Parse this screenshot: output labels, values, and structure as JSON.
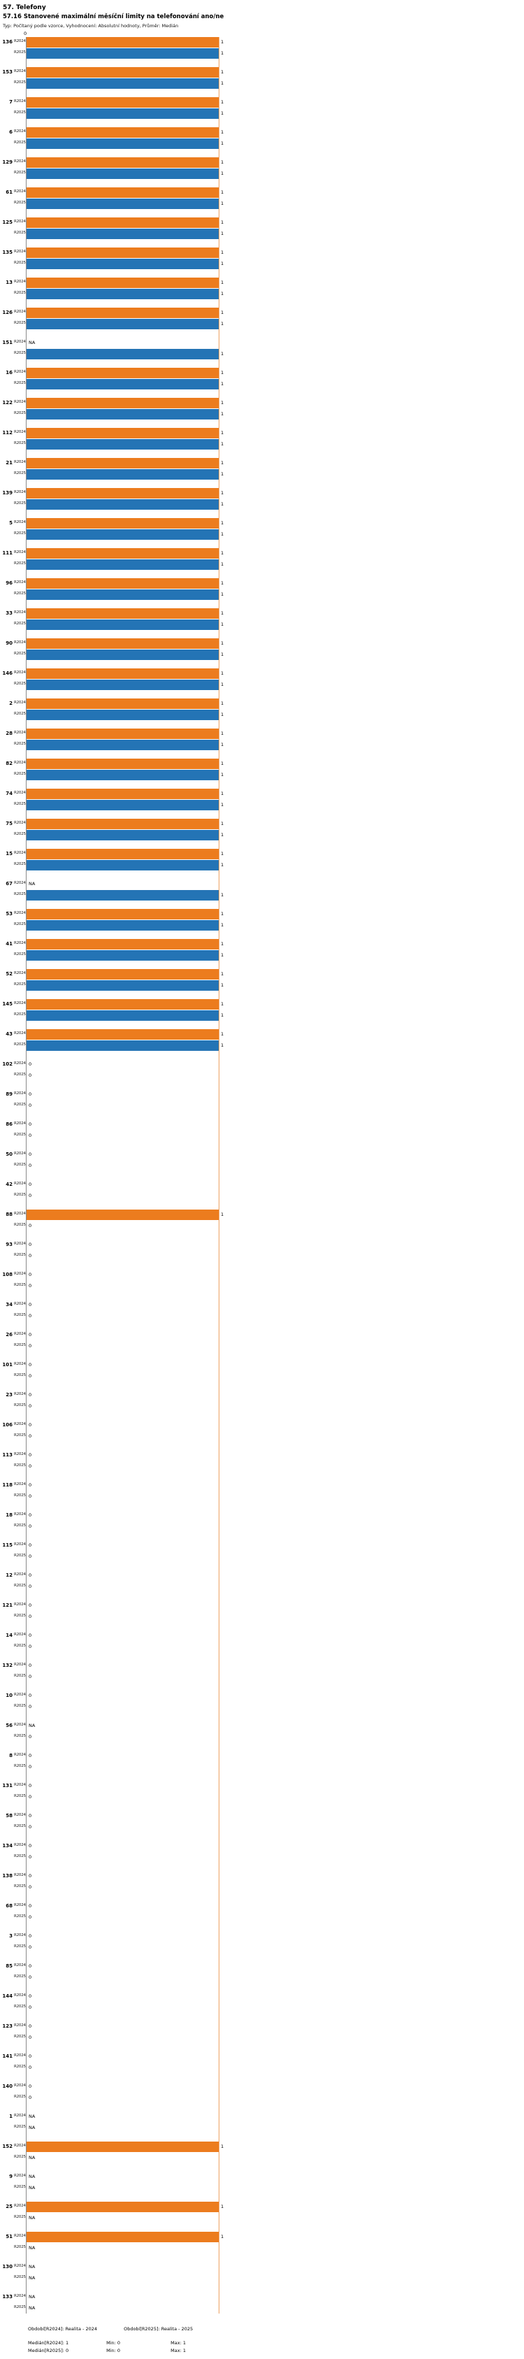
{
  "header": {
    "title": "57. Telefony",
    "subtitle": "57.16 Stanovené maximální měsíční limity na telefonování ano/ne",
    "meta": "Typ: Počítaný podle vzorce, Vyhodnocení: Absolutní hodnoty, Průměr: Medián"
  },
  "chart_data": {
    "type": "bar",
    "orientation": "horizontal",
    "title": "57.16 Stanovené maximální měsíční limity na telefonování ano/ne",
    "series_names": [
      "R2024",
      "R2025"
    ],
    "colors": {
      "R2024": "#ec7c1e",
      "R2025": "#2474b5"
    },
    "axis": {
      "min": 0,
      "max": 1,
      "top_tick_label": "0"
    },
    "legend_position": "bottom",
    "groups": [
      {
        "id": "136",
        "R2024": 1,
        "R2025": 1
      },
      {
        "id": "153",
        "R2024": 1,
        "R2025": 1
      },
      {
        "id": "7",
        "R2024": 1,
        "R2025": 1
      },
      {
        "id": "6",
        "R2024": 1,
        "R2025": 1
      },
      {
        "id": "129",
        "R2024": 1,
        "R2025": 1
      },
      {
        "id": "61",
        "R2024": 1,
        "R2025": 1
      },
      {
        "id": "125",
        "R2024": 1,
        "R2025": 1
      },
      {
        "id": "135",
        "R2024": 1,
        "R2025": 1
      },
      {
        "id": "13",
        "R2024": 1,
        "R2025": 1
      },
      {
        "id": "126",
        "R2024": 1,
        "R2025": 1
      },
      {
        "id": "151",
        "R2024": "NA",
        "R2025": 1
      },
      {
        "id": "16",
        "R2024": 1,
        "R2025": 1
      },
      {
        "id": "122",
        "R2024": 1,
        "R2025": 1
      },
      {
        "id": "112",
        "R2024": 1,
        "R2025": 1
      },
      {
        "id": "21",
        "R2024": 1,
        "R2025": 1
      },
      {
        "id": "139",
        "R2024": 1,
        "R2025": 1
      },
      {
        "id": "5",
        "R2024": 1,
        "R2025": 1
      },
      {
        "id": "111",
        "R2024": 1,
        "R2025": 1
      },
      {
        "id": "96",
        "R2024": 1,
        "R2025": 1
      },
      {
        "id": "33",
        "R2024": 1,
        "R2025": 1
      },
      {
        "id": "90",
        "R2024": 1,
        "R2025": 1
      },
      {
        "id": "146",
        "R2024": 1,
        "R2025": 1
      },
      {
        "id": "2",
        "R2024": 1,
        "R2025": 1
      },
      {
        "id": "28",
        "R2024": 1,
        "R2025": 1
      },
      {
        "id": "82",
        "R2024": 1,
        "R2025": 1
      },
      {
        "id": "74",
        "R2024": 1,
        "R2025": 1
      },
      {
        "id": "75",
        "R2024": 1,
        "R2025": 1
      },
      {
        "id": "15",
        "R2024": 1,
        "R2025": 1
      },
      {
        "id": "67",
        "R2024": "NA",
        "R2025": 1
      },
      {
        "id": "53",
        "R2024": 1,
        "R2025": 1
      },
      {
        "id": "41",
        "R2024": 1,
        "R2025": 1
      },
      {
        "id": "52",
        "R2024": 1,
        "R2025": 1
      },
      {
        "id": "145",
        "R2024": 1,
        "R2025": 1
      },
      {
        "id": "43",
        "R2024": 1,
        "R2025": 1
      },
      {
        "id": "102",
        "R2024": 0,
        "R2025": 0
      },
      {
        "id": "89",
        "R2024": 0,
        "R2025": 0
      },
      {
        "id": "86",
        "R2024": 0,
        "R2025": 0
      },
      {
        "id": "50",
        "R2024": 0,
        "R2025": 0
      },
      {
        "id": "42",
        "R2024": 0,
        "R2025": 0
      },
      {
        "id": "88",
        "R2024": 1,
        "R2025": 0
      },
      {
        "id": "93",
        "R2024": 0,
        "R2025": 0
      },
      {
        "id": "108",
        "R2024": 0,
        "R2025": 0
      },
      {
        "id": "34",
        "R2024": 0,
        "R2025": 0
      },
      {
        "id": "26",
        "R2024": 0,
        "R2025": 0
      },
      {
        "id": "101",
        "R2024": 0,
        "R2025": 0
      },
      {
        "id": "23",
        "R2024": 0,
        "R2025": 0
      },
      {
        "id": "106",
        "R2024": 0,
        "R2025": 0
      },
      {
        "id": "113",
        "R2024": 0,
        "R2025": 0
      },
      {
        "id": "118",
        "R2024": 0,
        "R2025": 0
      },
      {
        "id": "18",
        "R2024": 0,
        "R2025": 0
      },
      {
        "id": "115",
        "R2024": 0,
        "R2025": 0
      },
      {
        "id": "12",
        "R2024": 0,
        "R2025": 0
      },
      {
        "id": "121",
        "R2024": 0,
        "R2025": 0
      },
      {
        "id": "14",
        "R2024": 0,
        "R2025": 0
      },
      {
        "id": "132",
        "R2024": 0,
        "R2025": 0
      },
      {
        "id": "10",
        "R2024": 0,
        "R2025": 0
      },
      {
        "id": "56",
        "R2024": "NA",
        "R2025": 0
      },
      {
        "id": "8",
        "R2024": 0,
        "R2025": 0
      },
      {
        "id": "131",
        "R2024": 0,
        "R2025": 0
      },
      {
        "id": "58",
        "R2024": 0,
        "R2025": 0
      },
      {
        "id": "134",
        "R2024": 0,
        "R2025": 0
      },
      {
        "id": "138",
        "R2024": 0,
        "R2025": 0
      },
      {
        "id": "68",
        "R2024": 0,
        "R2025": 0
      },
      {
        "id": "3",
        "R2024": 0,
        "R2025": 0
      },
      {
        "id": "85",
        "R2024": 0,
        "R2025": 0
      },
      {
        "id": "144",
        "R2024": 0,
        "R2025": 0
      },
      {
        "id": "123",
        "R2024": 0,
        "R2025": 0
      },
      {
        "id": "141",
        "R2024": 0,
        "R2025": 0
      },
      {
        "id": "140",
        "R2024": 0,
        "R2025": 0
      },
      {
        "id": "1",
        "R2024": "NA",
        "R2025": "NA"
      },
      {
        "id": "152",
        "R2024": 1,
        "R2025": "NA"
      },
      {
        "id": "9",
        "R2024": "NA",
        "R2025": "NA"
      },
      {
        "id": "25",
        "R2024": 1,
        "R2025": "NA"
      },
      {
        "id": "51",
        "R2024": 1,
        "R2025": "NA"
      },
      {
        "id": "130",
        "R2024": "NA",
        "R2025": "NA"
      },
      {
        "id": "133",
        "R2024": "NA",
        "R2025": "NA"
      }
    ]
  },
  "footer": {
    "period_2024": "Období[R2024]: Realita - 2024",
    "period_2025": "Období[R2025]: Realita - 2025",
    "median_2024": "Medián[R2024]: 1",
    "min_2024": "Min: 0",
    "max_2024": "Max: 1",
    "median_2025": "Medián[R2025]: 0",
    "min_2025": "Min: 0",
    "max_2025": "Max: 1"
  }
}
